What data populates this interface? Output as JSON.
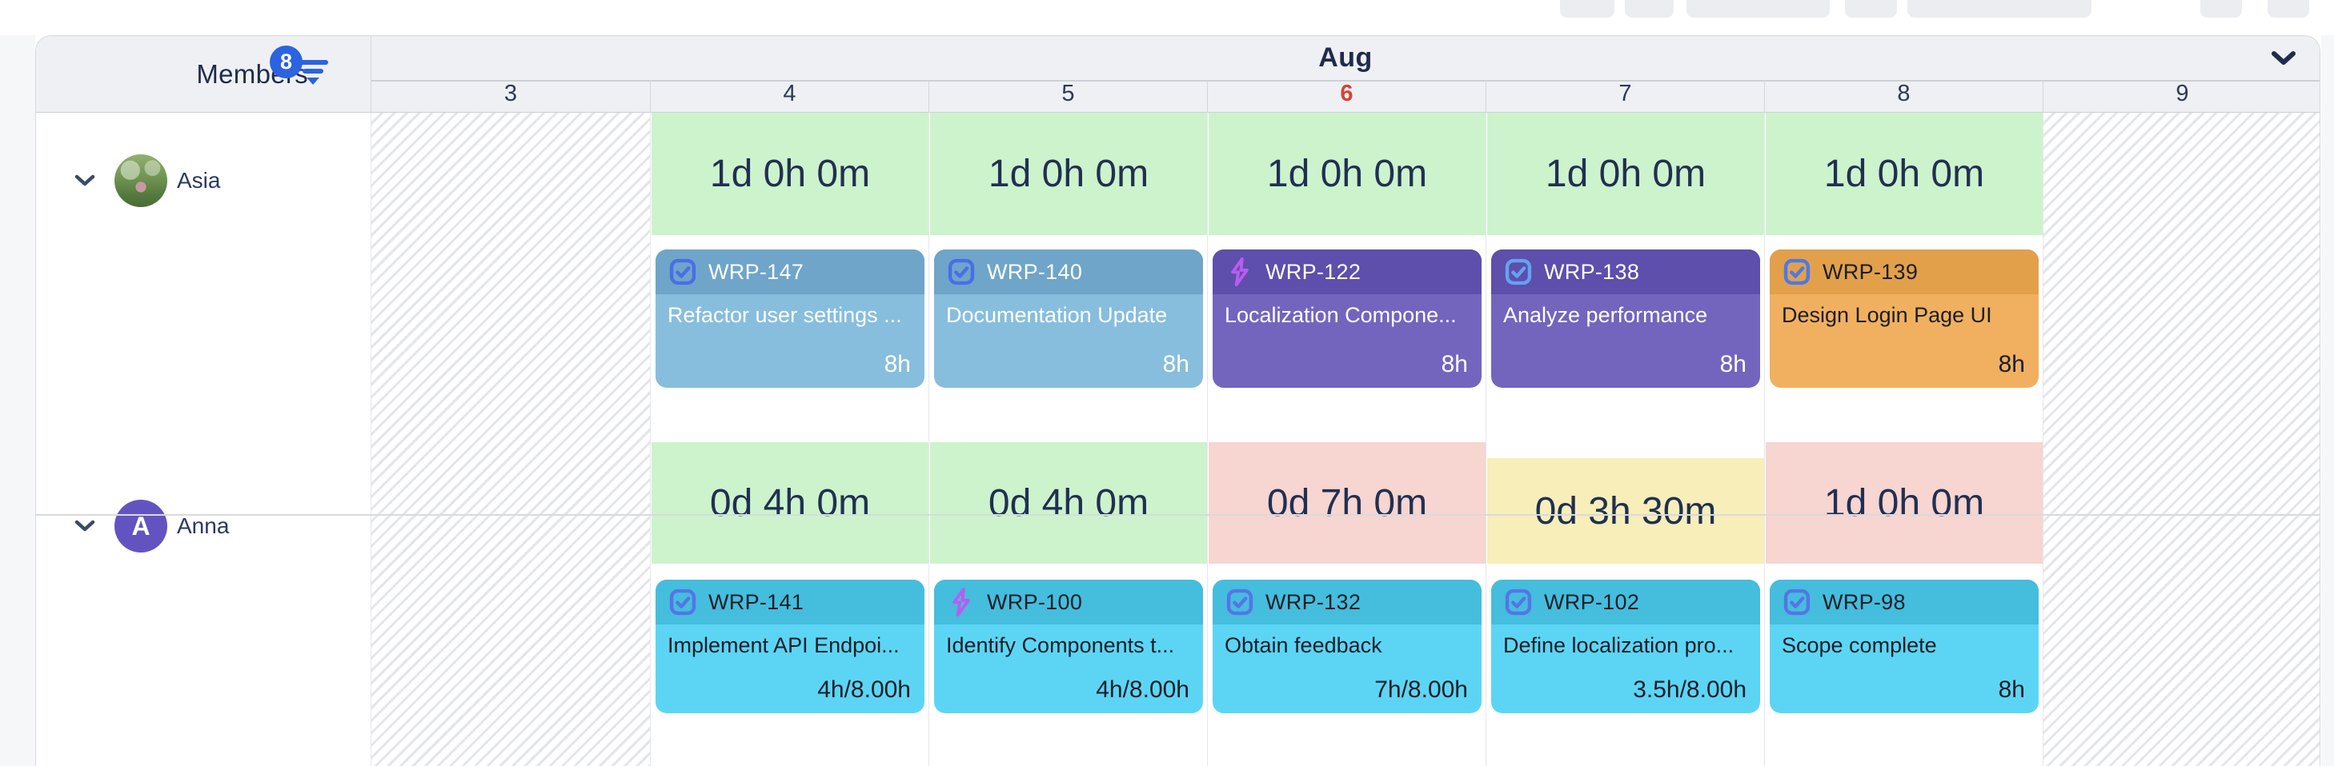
{
  "board": {
    "month_label": "Aug",
    "members_header": {
      "label": "Members",
      "filter_count": "8"
    },
    "days": [
      {
        "date": "3",
        "today": false,
        "non_working": true
      },
      {
        "date": "4",
        "today": false,
        "non_working": false
      },
      {
        "date": "5",
        "today": false,
        "non_working": false
      },
      {
        "date": "6",
        "today": true,
        "non_working": false
      },
      {
        "date": "7",
        "today": false,
        "non_working": false
      },
      {
        "date": "8",
        "today": false,
        "non_working": false
      },
      {
        "date": "9",
        "today": false,
        "non_working": true
      }
    ]
  },
  "colors": {
    "today_red": "#cf4538",
    "navy_text": "#1f2b4d",
    "badge_blue": "#2b63e0",
    "capacity_text": "#203052",
    "capacity_green": "#cdf3cc",
    "capacity_pink": "#f7d5d0",
    "capacity_yellow": "#f7eeb9"
  },
  "palettes": {
    "steelblue": {
      "header": "#6fa5c9",
      "body": "#87bedd",
      "text": "#ffffff",
      "icon": "#4a6ee8"
    },
    "purple": {
      "header": "#5d4fab",
      "body": "#7365bd",
      "text": "#ffffff",
      "icon": "#63a3f2"
    },
    "cyan": {
      "header": "#45bddd",
      "body": "#5cd5f5",
      "text": "#1a1e26",
      "icon": "#5674e6"
    },
    "orange": {
      "header": "#e2a04b",
      "body": "#f1b05f",
      "text": "#1a1e26",
      "icon": "#4b79e9"
    }
  },
  "bolt_color": "#b95cf0",
  "members": [
    {
      "name": "Asia",
      "avatar": {
        "type": "photo"
      },
      "capacity": [
        {
          "day": "4",
          "text": "1d 0h 0m",
          "color": "green"
        },
        {
          "day": "5",
          "text": "1d 0h 0m",
          "color": "green"
        },
        {
          "day": "6",
          "text": "1d 0h 0m",
          "color": "green"
        },
        {
          "day": "7",
          "text": "1d 0h 0m",
          "color": "green"
        },
        {
          "day": "8",
          "text": "1d 0h 0m",
          "color": "green"
        }
      ],
      "tasks": [
        {
          "day": "4",
          "key": "WRP-147",
          "icon": "task",
          "title": "Refactor user settings ...",
          "hours": "8h",
          "palette": "steelblue"
        },
        {
          "day": "5",
          "key": "WRP-140",
          "icon": "task",
          "title": "Documentation Update",
          "hours": "8h",
          "palette": "steelblue"
        },
        {
          "day": "6",
          "key": "WRP-122",
          "icon": "bolt",
          "title": "Localization Compone...",
          "hours": "8h",
          "palette": "purple"
        },
        {
          "day": "7",
          "key": "WRP-138",
          "icon": "task",
          "title": "Analyze performance",
          "hours": "8h",
          "palette": "purple"
        },
        {
          "day": "8",
          "key": "WRP-139",
          "icon": "task",
          "title": "Design Login Page UI",
          "hours": "8h",
          "palette": "orange"
        }
      ]
    },
    {
      "name": "Anna",
      "avatar": {
        "type": "initial",
        "initial": "A",
        "color": "#6353c1"
      },
      "capacity": [
        {
          "day": "4",
          "text": "0d 4h 0m",
          "color": "green"
        },
        {
          "day": "5",
          "text": "0d 4h 0m",
          "color": "green"
        },
        {
          "day": "6",
          "text": "0d 7h 0m",
          "color": "pink"
        },
        {
          "day": "7",
          "text": "0d 3h 30m",
          "color": "yellow",
          "reduced": true
        },
        {
          "day": "8",
          "text": "1d 0h 0m",
          "color": "pink"
        }
      ],
      "tasks": [
        {
          "day": "4",
          "key": "WRP-141",
          "icon": "task",
          "title": "Implement API Endpoi...",
          "hours": "4h/8.00h",
          "palette": "cyan"
        },
        {
          "day": "5",
          "key": "WRP-100",
          "icon": "bolt",
          "title": "Identify Components t...",
          "hours": "4h/8.00h",
          "palette": "cyan"
        },
        {
          "day": "6",
          "key": "WRP-132",
          "icon": "task",
          "title": "Obtain feedback",
          "hours": "7h/8.00h",
          "palette": "cyan"
        },
        {
          "day": "7",
          "key": "WRP-102",
          "icon": "task",
          "title": "Define localization pro...",
          "hours": "3.5h/8.00h",
          "palette": "cyan"
        },
        {
          "day": "8",
          "key": "WRP-98",
          "icon": "task",
          "title": "Scope complete",
          "hours": "8h",
          "palette": "cyan"
        }
      ]
    }
  ]
}
